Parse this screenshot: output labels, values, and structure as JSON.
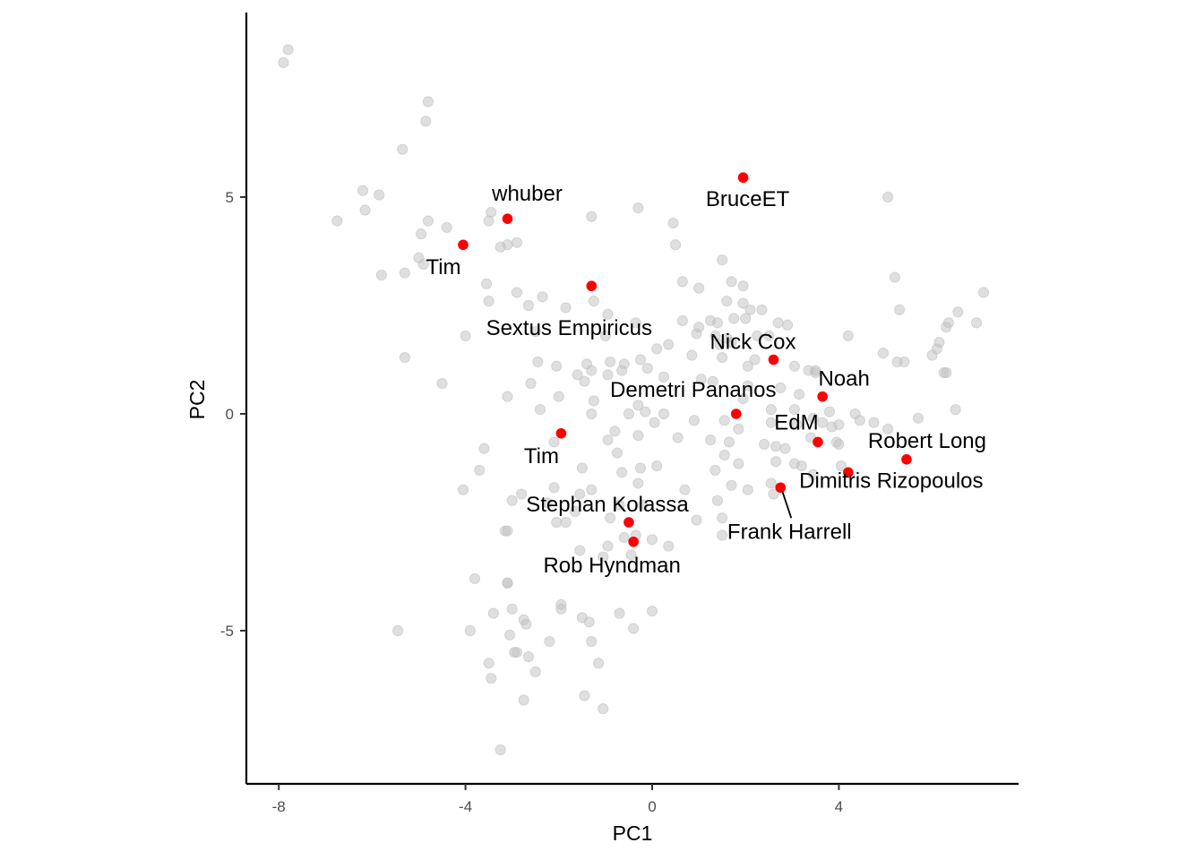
{
  "chart_data": {
    "type": "scatter",
    "title": "",
    "xlabel": "PC1",
    "ylabel": "PC2",
    "xlim": [
      -8.7,
      7.8
    ],
    "ylim": [
      -8.5,
      9.2
    ],
    "x_ticks": [
      -8,
      -4,
      0,
      4
    ],
    "x_tick_labels": [
      "-8",
      "-4",
      "0",
      "4"
    ],
    "y_ticks": [
      -5,
      0,
      5
    ],
    "y_tick_labels": [
      "-5",
      "0",
      "5"
    ],
    "grid": false,
    "colors": {
      "background_points": "#bfbfbf",
      "highlight_points": "#ff0000",
      "axis": "#000000"
    },
    "highlighted": [
      {
        "name": "whuber",
        "x": -3.1,
        "y": 4.5
      },
      {
        "name": "BruceET",
        "x": 1.95,
        "y": 5.45
      },
      {
        "name": "Tim",
        "x": -4.05,
        "y": 3.9
      },
      {
        "name": "Sextus Empiricus",
        "x": -1.3,
        "y": 2.95
      },
      {
        "name": "Nick Cox",
        "x": 2.6,
        "y": 1.25
      },
      {
        "name": "Noah",
        "x": 3.65,
        "y": 0.4
      },
      {
        "name": "Demetri Pananos",
        "x": 1.8,
        "y": 0.0
      },
      {
        "name": "EdM",
        "x": 3.55,
        "y": -0.65
      },
      {
        "name": "Tim",
        "x": -1.95,
        "y": -0.45
      },
      {
        "name": "Robert Long",
        "x": 5.45,
        "y": -1.05
      },
      {
        "name": "Dimitris Rizopoulos",
        "x": 4.2,
        "y": -1.35
      },
      {
        "name": "Frank Harrell",
        "x": 2.75,
        "y": -1.7
      },
      {
        "name": "Stephan Kolassa",
        "x": -0.5,
        "y": -2.5
      },
      {
        "name": "Rob Hyndman",
        "x": -0.4,
        "y": -2.95
      }
    ],
    "background_points": [
      [
        -7.8,
        8.4
      ],
      [
        -7.9,
        8.1
      ],
      [
        -4.8,
        7.2
      ],
      [
        -4.85,
        6.75
      ],
      [
        -5.35,
        6.1
      ],
      [
        -6.2,
        5.15
      ],
      [
        -5.85,
        5.05
      ],
      [
        -6.15,
        4.7
      ],
      [
        -6.75,
        4.45
      ],
      [
        -4.8,
        4.45
      ],
      [
        -4.95,
        4.15
      ],
      [
        -4.4,
        4.3
      ],
      [
        -3.45,
        4.65
      ],
      [
        -3.5,
        4.45
      ],
      [
        -3.25,
        3.85
      ],
      [
        -3.1,
        3.9
      ],
      [
        -2.9,
        3.95
      ],
      [
        -5.0,
        3.6
      ],
      [
        -4.9,
        3.45
      ],
      [
        -5.3,
        3.25
      ],
      [
        -5.8,
        3.2
      ],
      [
        -3.55,
        3.0
      ],
      [
        -2.9,
        2.8
      ],
      [
        -2.35,
        2.7
      ],
      [
        -1.25,
        2.6
      ],
      [
        -3.5,
        2.6
      ],
      [
        -2.65,
        2.5
      ],
      [
        -1.85,
        2.45
      ],
      [
        -0.95,
        2.3
      ],
      [
        -0.35,
        2.1
      ],
      [
        -2.5,
        1.9
      ],
      [
        -1.0,
        1.8
      ],
      [
        -4.0,
        1.8
      ],
      [
        -5.3,
        1.3
      ],
      [
        -2.45,
        1.2
      ],
      [
        -2.05,
        1.1
      ],
      [
        -1.4,
        1.15
      ],
      [
        -1.3,
        1.0
      ],
      [
        -0.9,
        1.2
      ],
      [
        -0.6,
        1.15
      ],
      [
        -0.25,
        1.25
      ],
      [
        -1.6,
        0.9
      ],
      [
        -1.45,
        0.75
      ],
      [
        -0.95,
        0.9
      ],
      [
        -0.65,
        1.0
      ],
      [
        -0.1,
        1.05
      ],
      [
        -2.6,
        0.7
      ],
      [
        -4.5,
        0.7
      ],
      [
        -3.1,
        0.4
      ],
      [
        -2.0,
        0.4
      ],
      [
        -1.25,
        0.3
      ],
      [
        -0.3,
        0.2
      ],
      [
        -2.4,
        0.1
      ],
      [
        -1.3,
        0.0
      ],
      [
        -0.5,
        0.0
      ],
      [
        0.05,
        -0.2
      ],
      [
        -0.15,
        0.05
      ],
      [
        -2.1,
        -0.65
      ],
      [
        -0.95,
        -0.6
      ],
      [
        -0.8,
        -0.4
      ],
      [
        -0.3,
        -0.5
      ],
      [
        -0.75,
        -0.9
      ],
      [
        -3.6,
        -0.8
      ],
      [
        -3.7,
        -1.3
      ],
      [
        -1.5,
        -1.25
      ],
      [
        -0.65,
        -1.35
      ],
      [
        -0.25,
        -1.25
      ],
      [
        0.1,
        -1.2
      ],
      [
        -0.3,
        -1.6
      ],
      [
        -2.1,
        -1.7
      ],
      [
        -1.3,
        -1.75
      ],
      [
        -4.05,
        -1.75
      ],
      [
        -2.8,
        -1.85
      ],
      [
        -3.0,
        -2.0
      ],
      [
        -2.25,
        -2.05
      ],
      [
        -1.55,
        -1.85
      ],
      [
        -1.65,
        -2.25
      ],
      [
        -0.7,
        -2.1
      ],
      [
        -0.2,
        -2.1
      ],
      [
        -0.9,
        -2.4
      ],
      [
        -2.05,
        -2.5
      ],
      [
        -3.15,
        -2.7
      ],
      [
        -3.1,
        -2.7
      ],
      [
        -1.85,
        -2.5
      ],
      [
        -0.6,
        -2.85
      ],
      [
        -0.35,
        -2.8
      ],
      [
        0.0,
        -2.9
      ],
      [
        -1.55,
        -3.15
      ],
      [
        -1.05,
        -3.3
      ],
      [
        -0.95,
        -3.05
      ],
      [
        -0.45,
        -3.25
      ],
      [
        0.35,
        -3.05
      ],
      [
        -3.8,
        -3.8
      ],
      [
        -3.1,
        -3.9
      ],
      [
        -3.1,
        -3.9
      ],
      [
        -3.0,
        -4.5
      ],
      [
        -3.4,
        -4.6
      ],
      [
        -1.95,
        -4.4
      ],
      [
        -1.95,
        -4.5
      ],
      [
        -0.7,
        -4.6
      ],
      [
        0.0,
        -4.55
      ],
      [
        -2.75,
        -4.75
      ],
      [
        -2.7,
        -4.85
      ],
      [
        -1.5,
        -4.7
      ],
      [
        -1.35,
        -4.8
      ],
      [
        -1.3,
        -5.25
      ],
      [
        -0.4,
        -4.95
      ],
      [
        -3.05,
        -5.1
      ],
      [
        -2.2,
        -5.25
      ],
      [
        -2.95,
        -5.5
      ],
      [
        -2.9,
        -5.5
      ],
      [
        -2.65,
        -5.6
      ],
      [
        -3.5,
        -5.75
      ],
      [
        -1.15,
        -5.75
      ],
      [
        -2.5,
        -5.95
      ],
      [
        -3.45,
        -6.1
      ],
      [
        -1.45,
        -6.5
      ],
      [
        -2.75,
        -6.6
      ],
      [
        -1.05,
        -6.8
      ],
      [
        -3.25,
        -7.75
      ],
      [
        -5.45,
        -5.0
      ],
      [
        -3.9,
        -5.0
      ],
      [
        0.45,
        4.4
      ],
      [
        0.5,
        3.9
      ],
      [
        -0.3,
        4.75
      ],
      [
        -1.3,
        4.55
      ],
      [
        1.5,
        3.55
      ],
      [
        1.7,
        3.05
      ],
      [
        1.95,
        2.95
      ],
      [
        0.65,
        3.05
      ],
      [
        1.0,
        2.9
      ],
      [
        1.6,
        2.6
      ],
      [
        1.95,
        2.55
      ],
      [
        2.1,
        2.4
      ],
      [
        2.35,
        2.4
      ],
      [
        1.75,
        2.2
      ],
      [
        2.0,
        2.2
      ],
      [
        0.65,
        2.15
      ],
      [
        1.25,
        2.15
      ],
      [
        1.4,
        2.1
      ],
      [
        2.7,
        2.1
      ],
      [
        2.9,
        2.05
      ],
      [
        1.0,
        2.0
      ],
      [
        0.95,
        1.85
      ],
      [
        1.35,
        1.8
      ],
      [
        1.6,
        1.75
      ],
      [
        2.25,
        1.8
      ],
      [
        2.5,
        1.8
      ],
      [
        0.35,
        1.6
      ],
      [
        1.45,
        1.6
      ],
      [
        1.7,
        1.65
      ],
      [
        0.1,
        1.5
      ],
      [
        0.85,
        1.35
      ],
      [
        1.5,
        1.3
      ],
      [
        2.2,
        1.25
      ],
      [
        2.05,
        1.1
      ],
      [
        3.05,
        1.1
      ],
      [
        3.35,
        1.0
      ],
      [
        3.5,
        0.95
      ],
      [
        0.25,
        0.85
      ],
      [
        1.05,
        0.8
      ],
      [
        1.3,
        0.75
      ],
      [
        2.05,
        0.65
      ],
      [
        2.75,
        0.6
      ],
      [
        3.15,
        0.45
      ],
      [
        1.95,
        0.35
      ],
      [
        2.55,
        0.1
      ],
      [
        3.05,
        0.1
      ],
      [
        3.8,
        0.05
      ],
      [
        4.35,
        0.0
      ],
      [
        0.25,
        0.0
      ],
      [
        0.9,
        -0.15
      ],
      [
        1.55,
        -0.15
      ],
      [
        1.85,
        -0.35
      ],
      [
        2.55,
        -0.2
      ],
      [
        3.1,
        -0.25
      ],
      [
        3.45,
        -0.1
      ],
      [
        3.65,
        -0.2
      ],
      [
        3.85,
        -0.3
      ],
      [
        4.0,
        -0.25
      ],
      [
        4.45,
        -0.15
      ],
      [
        4.75,
        -0.2
      ],
      [
        5.05,
        -0.35
      ],
      [
        0.55,
        -0.55
      ],
      [
        1.25,
        -0.6
      ],
      [
        1.65,
        -0.65
      ],
      [
        2.4,
        -0.7
      ],
      [
        2.65,
        -0.75
      ],
      [
        2.85,
        -0.8
      ],
      [
        3.4,
        -0.55
      ],
      [
        3.95,
        -0.65
      ],
      [
        4.0,
        -0.7
      ],
      [
        1.55,
        -0.95
      ],
      [
        1.85,
        -1.15
      ],
      [
        2.65,
        -1.1
      ],
      [
        3.05,
        -1.15
      ],
      [
        3.2,
        -1.2
      ],
      [
        1.35,
        -1.3
      ],
      [
        2.55,
        -1.6
      ],
      [
        3.45,
        -1.4
      ],
      [
        4.05,
        -1.2
      ],
      [
        1.7,
        -1.65
      ],
      [
        0.7,
        -1.75
      ],
      [
        2.05,
        -1.75
      ],
      [
        1.4,
        -2.0
      ],
      [
        2.6,
        -1.85
      ],
      [
        1.5,
        -2.4
      ],
      [
        0.95,
        -2.45
      ],
      [
        1.5,
        -2.8
      ],
      [
        4.2,
        1.8
      ],
      [
        3.5,
        1.0
      ],
      [
        5.05,
        5.0
      ],
      [
        5.2,
        3.15
      ],
      [
        5.3,
        2.4
      ],
      [
        4.95,
        1.4
      ],
      [
        5.25,
        1.2
      ],
      [
        5.4,
        1.2
      ],
      [
        6.3,
        2.0
      ],
      [
        6.15,
        1.65
      ],
      [
        6.1,
        1.5
      ],
      [
        6.0,
        1.35
      ],
      [
        6.55,
        2.35
      ],
      [
        6.35,
        2.1
      ],
      [
        7.1,
        2.8
      ],
      [
        6.95,
        2.1
      ],
      [
        6.25,
        0.95
      ],
      [
        6.3,
        0.95
      ],
      [
        6.5,
        0.1
      ],
      [
        5.7,
        -0.1
      ]
    ]
  }
}
